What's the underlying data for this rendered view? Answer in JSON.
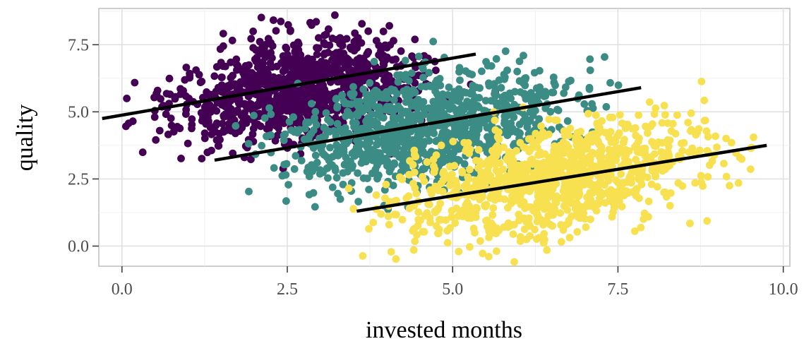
{
  "chart_data": {
    "type": "scatter",
    "title": "",
    "xlabel": "invested months",
    "ylabel": "quality",
    "xlim": [
      -0.35,
      10.1
    ],
    "ylim": [
      -0.75,
      8.85
    ],
    "x_ticks": [
      0.0,
      2.5,
      5.0,
      7.5,
      10.0
    ],
    "x_tick_labels": [
      "0.0",
      "2.5",
      "5.0",
      "7.5",
      "10.0"
    ],
    "y_ticks": [
      0.0,
      2.5,
      5.0,
      7.5
    ],
    "y_tick_labels": [
      "0.0",
      "2.5",
      "5.0",
      "7.5"
    ],
    "grid": true,
    "legend": "none",
    "series": [
      {
        "color": "#440154",
        "center": [
          2.65,
          5.85
        ],
        "spread": [
          0.95,
          0.95
        ],
        "n_points": 1000,
        "trend_line": [
          [
            -0.3,
            4.75
          ],
          [
            5.35,
            7.15
          ]
        ]
      },
      {
        "color": "#3b8c84",
        "center": [
          4.7,
          4.4
        ],
        "spread": [
          1.05,
          1.0
        ],
        "n_points": 1000,
        "trend_line": [
          [
            1.4,
            3.2
          ],
          [
            7.85,
            5.9
          ]
        ]
      },
      {
        "color": "#f7e151",
        "center": [
          6.6,
          2.55
        ],
        "spread": [
          1.15,
          1.05
        ],
        "n_points": 1000,
        "trend_line": [
          [
            3.55,
            1.3
          ],
          [
            9.75,
            3.75
          ]
        ]
      }
    ]
  }
}
